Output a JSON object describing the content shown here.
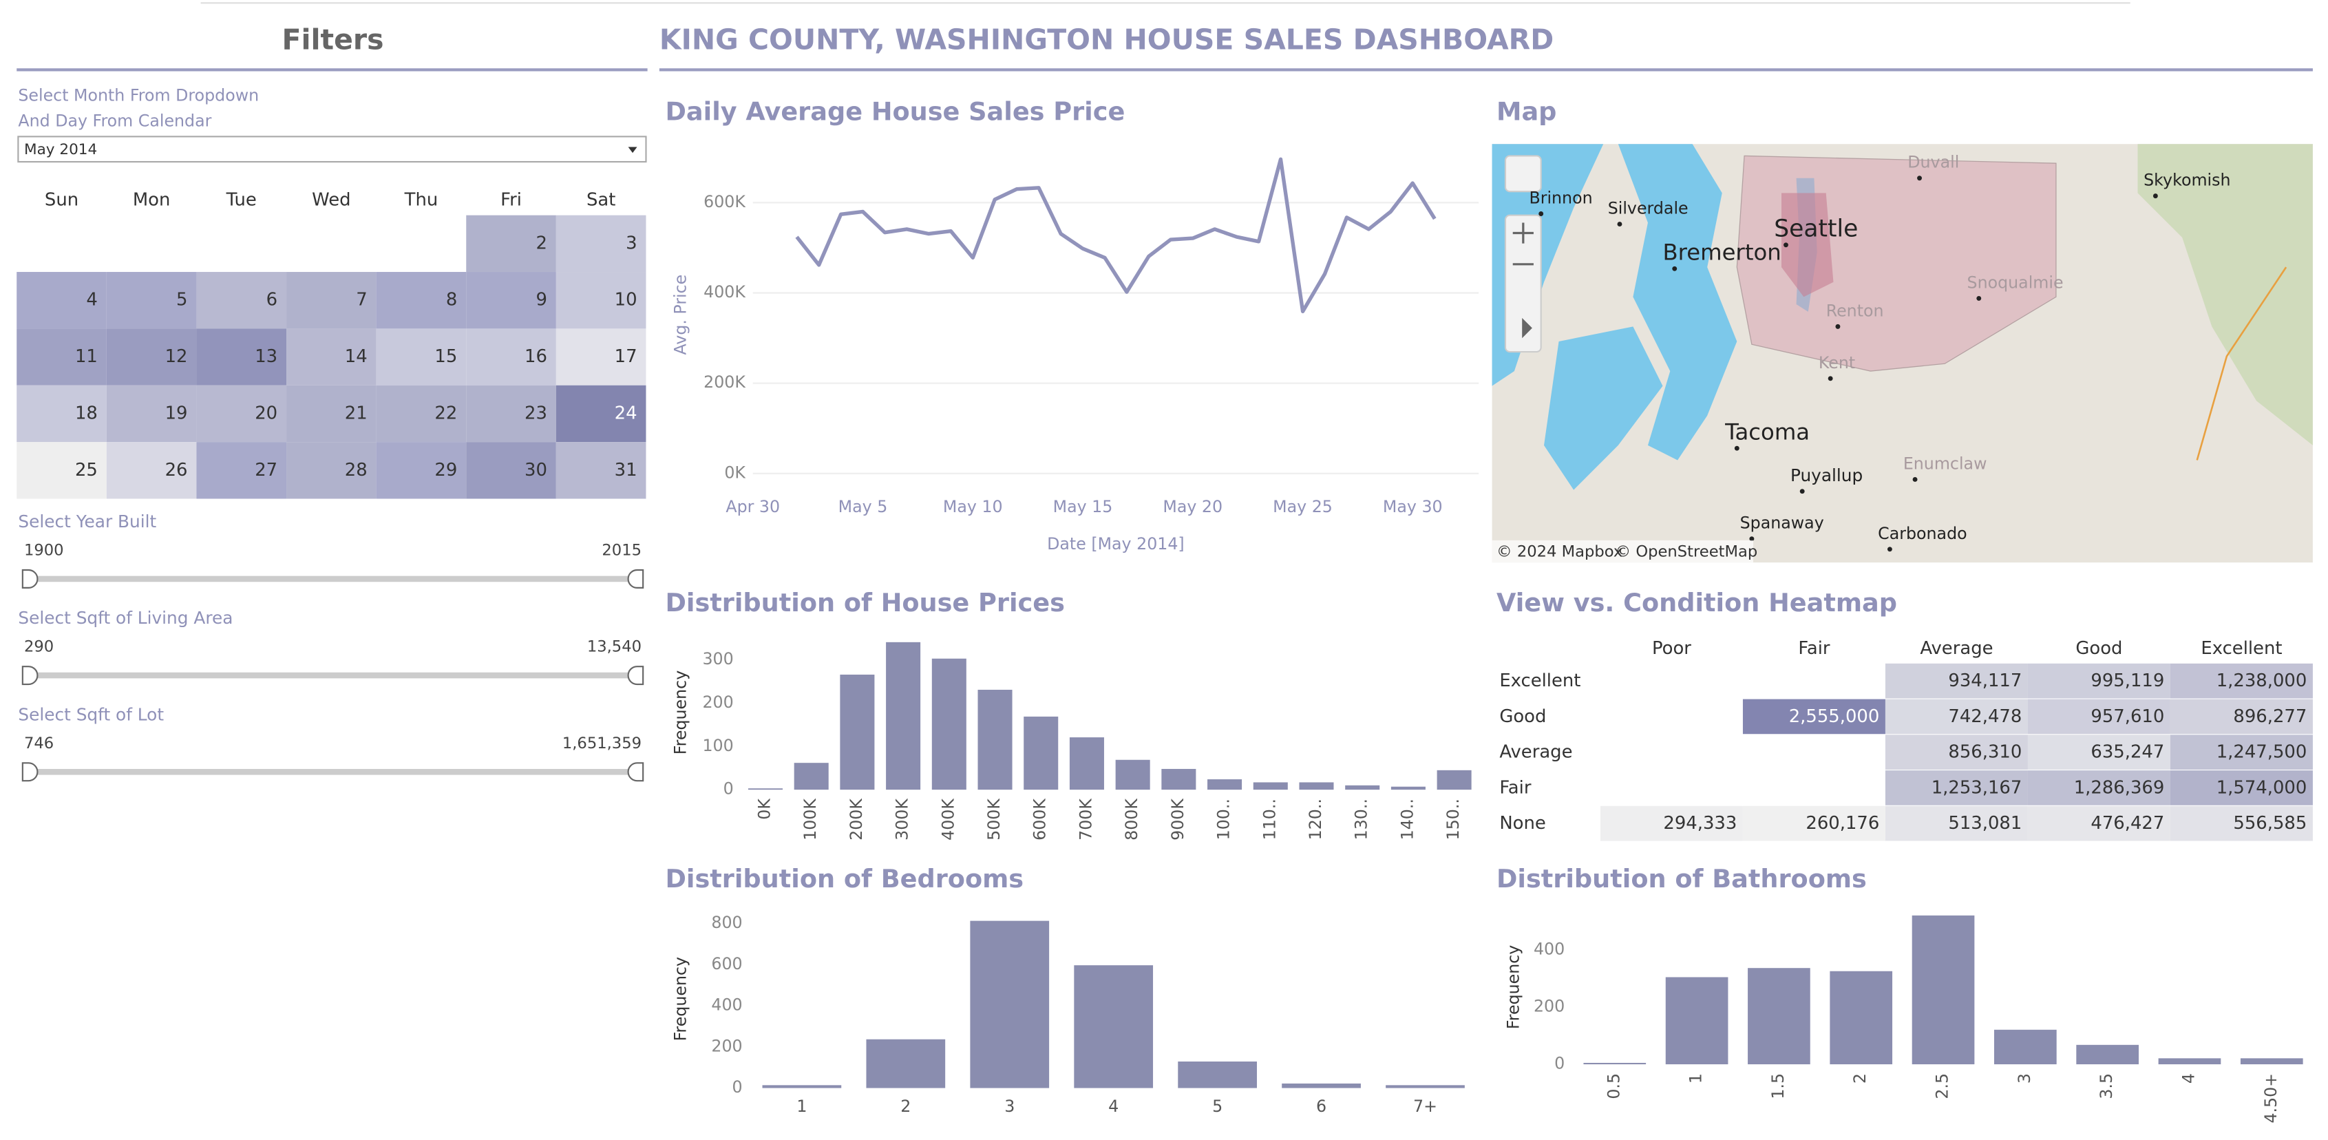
{
  "header": {
    "title": "KING COUNTY, WASHINGTON HOUSE SALES DASHBOARD"
  },
  "filters": {
    "title": "Filters",
    "month_prompt": [
      "Select Month From Dropdown",
      "And Day From Calendar"
    ],
    "dropdown": "May 2014",
    "weekdays": [
      "Sun",
      "Mon",
      "Tue",
      "Wed",
      "Thu",
      "Fri",
      "Sat"
    ],
    "days": [
      {
        "day": 2,
        "color": "#b0b2cc"
      },
      {
        "day": 3,
        "color": "#c8c9dc"
      },
      {
        "day": 4,
        "color": "#a8aacb"
      },
      {
        "day": 5,
        "color": "#a8aacb"
      },
      {
        "day": 6,
        "color": "#b8b9d1"
      },
      {
        "day": 7,
        "color": "#b0b2cc"
      },
      {
        "day": 8,
        "color": "#a8aacb"
      },
      {
        "day": 9,
        "color": "#a8aacb"
      },
      {
        "day": 10,
        "color": "#c8c9dc"
      },
      {
        "day": 11,
        "color": "#a0a2c4"
      },
      {
        "day": 12,
        "color": "#9a9cc0"
      },
      {
        "day": 13,
        "color": "#9294bb"
      },
      {
        "day": 14,
        "color": "#b8b9d1"
      },
      {
        "day": 15,
        "color": "#c8c9dc"
      },
      {
        "day": 16,
        "color": "#c8c9dc"
      },
      {
        "day": 17,
        "color": "#e2e2ea"
      },
      {
        "day": 18,
        "color": "#c8c9dc"
      },
      {
        "day": 19,
        "color": "#b8b9d1"
      },
      {
        "day": 20,
        "color": "#b8b9d1"
      },
      {
        "day": 21,
        "color": "#b0b2cc"
      },
      {
        "day": 22,
        "color": "#b0b2cc"
      },
      {
        "day": 23,
        "color": "#b0b2cc"
      },
      {
        "day": 24,
        "color": "#8385af"
      },
      {
        "day": 25,
        "color": "#eeeeee"
      },
      {
        "day": 26,
        "color": "#d8d8e4"
      },
      {
        "day": 27,
        "color": "#a8aacb"
      },
      {
        "day": 28,
        "color": "#b0b2cc"
      },
      {
        "day": 29,
        "color": "#a8aacb"
      },
      {
        "day": 30,
        "color": "#9a9cc0"
      },
      {
        "day": 31,
        "color": "#b8b9d1"
      }
    ],
    "sliders": [
      {
        "label": "Select Year Built",
        "min": "1900",
        "max": "2015"
      },
      {
        "label": "Select Sqft of Living Area",
        "min": "290",
        "max": "13,540"
      },
      {
        "label": "Select Sqft of Lot",
        "min": "746",
        "max": "1,651,359"
      }
    ]
  },
  "map": {
    "title": "Map",
    "places": [
      "Brinnon",
      "Silverdale",
      "Seattle",
      "Bremerton",
      "Skykomish",
      "Tacoma",
      "Puyallup",
      "Spanaway",
      "Carbonado",
      "Enumclaw",
      "Snoqualmie",
      "Duvall",
      "Kent",
      "Renton"
    ],
    "attribution": [
      "© 2024 Mapbox",
      "© OpenStreetMap"
    ]
  },
  "chart_data": [
    {
      "type": "line",
      "title": "Daily Average House Sales Price",
      "x_label": "Date [May 2014]",
      "y_label": "Avg. Price",
      "x": [
        "2014-05-02",
        "2014-05-03",
        "2014-05-04",
        "2014-05-05",
        "2014-05-06",
        "2014-05-07",
        "2014-05-08",
        "2014-05-09",
        "2014-05-10",
        "2014-05-11",
        "2014-05-12",
        "2014-05-13",
        "2014-05-14",
        "2014-05-15",
        "2014-05-16",
        "2014-05-17",
        "2014-05-18",
        "2014-05-19",
        "2014-05-20",
        "2014-05-21",
        "2014-05-22",
        "2014-05-23",
        "2014-05-24",
        "2014-05-25",
        "2014-05-26",
        "2014-05-27",
        "2014-05-28",
        "2014-05-29",
        "2014-05-30",
        "2014-05-31"
      ],
      "values": [
        524000,
        462000,
        574000,
        580000,
        534000,
        541000,
        531000,
        537000,
        478000,
        607000,
        630000,
        633000,
        531000,
        498000,
        478000,
        402000,
        481000,
        518000,
        521000,
        541000,
        524000,
        514000,
        696000,
        359000,
        442000,
        567000,
        541000,
        580000,
        643000,
        564000
      ],
      "color": "#9193bb",
      "xlim": [
        "2014-04-30",
        "2014-06-02"
      ],
      "xticks": [
        {
          "value": "2014-04-30",
          "label": "Apr 30"
        },
        {
          "value": "2014-05-05",
          "label": "May 5"
        },
        {
          "value": "2014-05-10",
          "label": "May 10"
        },
        {
          "value": "2014-05-15",
          "label": "May 15"
        },
        {
          "value": "2014-05-20",
          "label": "May 20"
        },
        {
          "value": "2014-05-25",
          "label": "May 25"
        },
        {
          "value": "2014-05-30",
          "label": "May 30"
        }
      ],
      "ylim": [
        0,
        720000
      ],
      "yticks": [
        {
          "value": 0,
          "label": "0K"
        },
        {
          "value": 200000,
          "label": "200K"
        },
        {
          "value": 400000,
          "label": "400K"
        },
        {
          "value": 600000,
          "label": "600K"
        }
      ],
      "grid": true
    },
    {
      "type": "bar",
      "title": "Distribution of House Prices",
      "y_label": "Frequency",
      "categories": [
        "0K",
        "100K",
        "200K",
        "300K",
        "400K",
        "500K",
        "600K",
        "700K",
        "800K",
        "900K",
        "100..",
        "110..",
        "120..",
        "130..",
        "140..",
        "150.."
      ],
      "values": [
        3,
        62,
        266,
        341,
        303,
        231,
        169,
        121,
        69,
        48,
        24,
        17,
        17,
        10,
        7,
        45
      ],
      "color": "#8a8daf",
      "ylim": [
        0,
        350
      ],
      "yticks": [
        0,
        100,
        200,
        300
      ],
      "rotate_labels": true
    },
    {
      "type": "heatmap",
      "title": "View vs. Condition Heatmap",
      "columns": [
        "Poor",
        "Fair",
        "Average",
        "Good",
        "Excellent"
      ],
      "rows": [
        "Excellent",
        "Good",
        "Average",
        "Fair",
        "None"
      ],
      "values": [
        [
          null,
          null,
          934117,
          995119,
          1238000
        ],
        [
          null,
          2555000,
          742478,
          957610,
          896277
        ],
        [
          null,
          null,
          856310,
          635247,
          1247500
        ],
        [
          null,
          null,
          1253167,
          1286369,
          1574000
        ],
        [
          294333,
          260176,
          513081,
          476427,
          556585
        ]
      ],
      "value_labels": [
        [
          null,
          null,
          "934,117",
          "995,119",
          "1,238,000"
        ],
        [
          null,
          "2,555,000",
          "742,478",
          "957,610",
          "896,277"
        ],
        [
          null,
          null,
          "856,310",
          "635,247",
          "1,247,500"
        ],
        [
          null,
          null,
          "1,253,167",
          "1,286,369",
          "1,574,000"
        ],
        [
          "294,333",
          "260,176",
          "513,081",
          "476,427",
          "556,585"
        ]
      ],
      "color_range": [
        "#f0f0f0",
        "#8385b0"
      ]
    },
    {
      "type": "bar",
      "title": "Distribution of Bedrooms",
      "y_label": "Frequency",
      "categories": [
        "1",
        "2",
        "3",
        "4",
        "5",
        "6",
        "7+"
      ],
      "values": [
        14,
        237,
        813,
        597,
        129,
        22,
        14
      ],
      "color": "#8a8daf",
      "ylim": [
        0,
        830
      ],
      "yticks": [
        0,
        200,
        400,
        600,
        800
      ],
      "rotate_labels": false
    },
    {
      "type": "bar",
      "title": "Distribution of Bathrooms",
      "y_label": "Frequency",
      "categories": [
        "0.5",
        "1",
        "1.5",
        "2",
        "2.5",
        "3",
        "3.5",
        "4",
        "4.50+"
      ],
      "values": [
        5,
        305,
        337,
        326,
        521,
        121,
        68,
        21,
        21
      ],
      "color": "#8a8daf",
      "ylim": [
        0,
        530
      ],
      "yticks": [
        0,
        200,
        400
      ],
      "rotate_labels": true
    }
  ]
}
